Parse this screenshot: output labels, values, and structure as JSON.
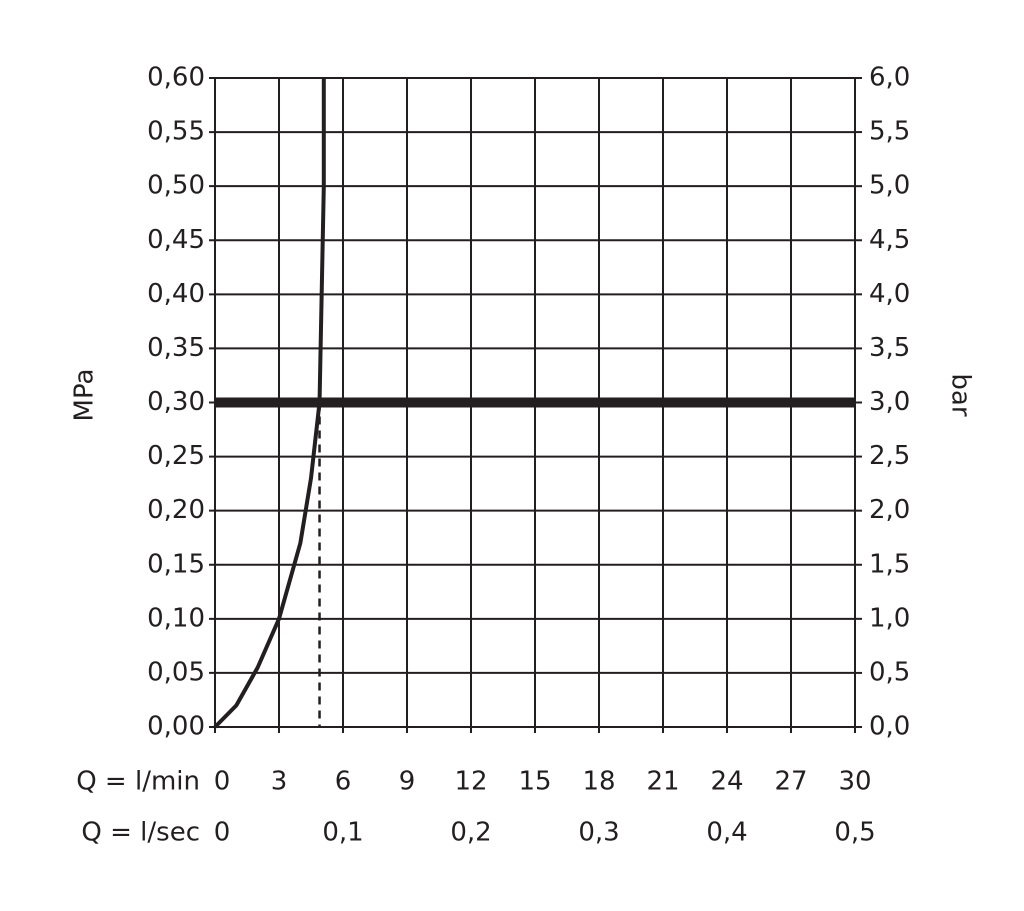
{
  "chart_data": {
    "type": "line",
    "ylabel": "MPa",
    "y2label": "bar",
    "xlabel": "Q = l/min",
    "x2label": "Q = l/sec",
    "xlim": [
      0,
      30
    ],
    "xticks": [
      0,
      3,
      6,
      9,
      12,
      15,
      18,
      21,
      24,
      27,
      30
    ],
    "x2lim": [
      0,
      0.5
    ],
    "x2ticks": [
      0,
      {
        "value": 0.1,
        "label": "0,1"
      },
      {
        "value": 0.2,
        "label": "0,2"
      },
      {
        "value": 0.3,
        "label": "0,3"
      },
      {
        "value": 0.4,
        "label": "0,4"
      },
      {
        "value": 0.5,
        "label": "0,5"
      }
    ],
    "ylim": [
      0,
      0.6
    ],
    "yticks": [
      {
        "value": 0,
        "label": "0,00"
      },
      {
        "value": 0.05,
        "label": "0,05"
      },
      {
        "value": 0.1,
        "label": "0,10"
      },
      {
        "value": 0.15,
        "label": "0,15"
      },
      {
        "value": 0.2,
        "label": "0,20"
      },
      {
        "value": 0.25,
        "label": "0,25"
      },
      {
        "value": 0.3,
        "label": "0,30"
      },
      {
        "value": 0.35,
        "label": "0,35"
      },
      {
        "value": 0.4,
        "label": "0,40"
      },
      {
        "value": 0.45,
        "label": "0,45"
      },
      {
        "value": 0.5,
        "label": "0,50"
      },
      {
        "value": 0.55,
        "label": "0,55"
      },
      {
        "value": 0.6,
        "label": "0,60"
      }
    ],
    "y2lim": [
      0,
      6
    ],
    "y2ticks": [
      {
        "value": 0,
        "label": "0,0"
      },
      {
        "value": 0.5,
        "label": "0,5"
      },
      {
        "value": 1,
        "label": "1,0"
      },
      {
        "value": 1.5,
        "label": "1,5"
      },
      {
        "value": 2,
        "label": "2,0"
      },
      {
        "value": 2.5,
        "label": "2,5"
      },
      {
        "value": 3,
        "label": "3,0"
      },
      {
        "value": 3.5,
        "label": "3,5"
      },
      {
        "value": 4,
        "label": "4,0"
      },
      {
        "value": 4.5,
        "label": "4,5"
      },
      {
        "value": 5,
        "label": "5,0"
      },
      {
        "value": 5.5,
        "label": "5,5"
      },
      {
        "value": 6,
        "label": "6,0"
      }
    ],
    "grid": true,
    "series": [
      {
        "color": "#231f20",
        "x": [
          0,
          1,
          2,
          3,
          4,
          4.5,
          4.9,
          5.0,
          5.1,
          5.1
        ],
        "values": [
          0,
          0.02,
          0.055,
          0.1,
          0.17,
          0.23,
          0.3,
          0.4,
          0.5,
          0.6
        ]
      }
    ],
    "operating_point": {
      "x": 4.9,
      "y": 0.3
    }
  }
}
